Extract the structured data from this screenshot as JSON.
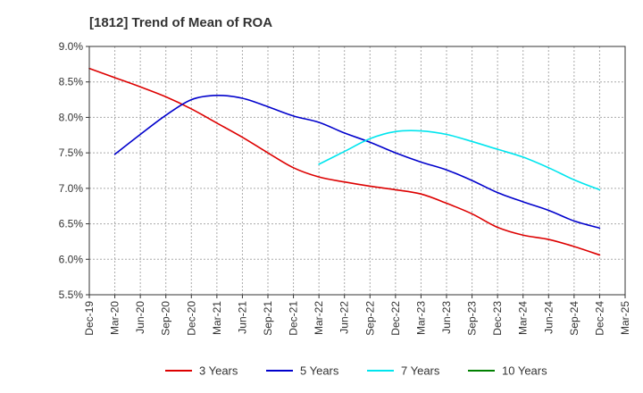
{
  "chart_data": {
    "type": "line",
    "title": "[1812]  Trend of Mean of ROA",
    "xlabel": "",
    "ylabel": "",
    "ylim": [
      5.5,
      9.0
    ],
    "y_ticks": [
      5.5,
      6.0,
      6.5,
      7.0,
      7.5,
      8.0,
      8.5,
      9.0
    ],
    "y_tick_labels": [
      "5.5%",
      "6.0%",
      "6.5%",
      "7.0%",
      "7.5%",
      "8.0%",
      "8.5%",
      "9.0%"
    ],
    "grid": true,
    "legend_position": "bottom",
    "x_tick_labels": [
      "Dec-19",
      "Mar-20",
      "Jun-20",
      "Sep-20",
      "Dec-20",
      "Mar-21",
      "Jun-21",
      "Sep-21",
      "Dec-21",
      "Mar-22",
      "Jun-22",
      "Sep-22",
      "Dec-22",
      "Mar-23",
      "Jun-23",
      "Sep-23",
      "Dec-23",
      "Mar-24",
      "Jun-24",
      "Sep-24",
      "Dec-24",
      "Mar-25"
    ],
    "series": [
      {
        "name": "3 Years",
        "color": "#dd0000",
        "start_index": 0,
        "values": [
          8.69,
          8.56,
          8.43,
          8.29,
          8.12,
          7.92,
          7.72,
          7.5,
          7.29,
          7.16,
          7.09,
          7.03,
          6.98,
          6.92,
          6.79,
          6.64,
          6.45,
          6.34,
          6.28,
          6.18,
          6.06
        ]
      },
      {
        "name": "5 Years",
        "color": "#0000cc",
        "start_index": 1,
        "values": [
          7.48,
          7.76,
          8.03,
          8.25,
          8.31,
          8.27,
          8.15,
          8.02,
          7.93,
          7.78,
          7.65,
          7.5,
          7.37,
          7.26,
          7.11,
          6.94,
          6.81,
          6.69,
          6.54,
          6.44
        ]
      },
      {
        "name": "7 Years",
        "color": "#00e5ee",
        "start_index": 9,
        "values": [
          7.34,
          7.52,
          7.7,
          7.8,
          7.81,
          7.76,
          7.66,
          7.55,
          7.44,
          7.29,
          7.12,
          6.98
        ]
      },
      {
        "name": "10 Years",
        "color": "#008000",
        "start_index": 0,
        "values": []
      }
    ]
  }
}
